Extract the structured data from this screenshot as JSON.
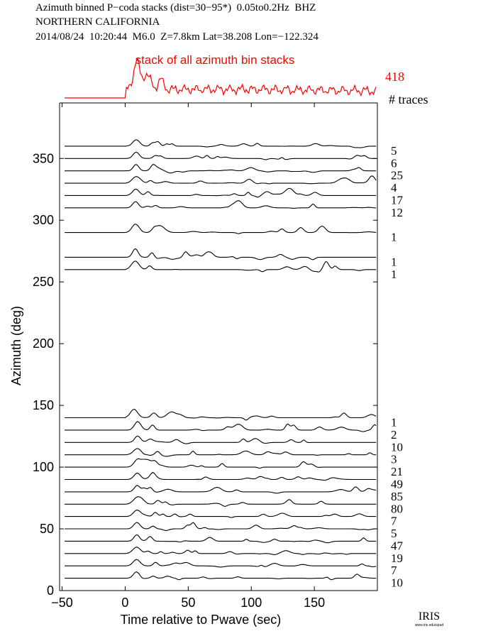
{
  "header": {
    "line1": "Azimuth binned P−coda stacks (dist=30−95*)  0.05to0.2Hz  BHZ",
    "line2": "NORTHERN CALIFORNIA",
    "line3": "2014/08/24  10:20:44  M6.0  Z=7.8km Lat=38.208 Lon=−122.324"
  },
  "logo": {
    "text": "IRIS",
    "subtext": "www.iris.edu/spud"
  },
  "colors": {
    "stack": "#ff0000",
    "trace": "#000000"
  },
  "chart_data": {
    "type": "line",
    "title": "",
    "xlabel": "Time relative to Pwave (sec)",
    "ylabel": "Azimuth (deg)",
    "xlim": [
      -52,
      200
    ],
    "ylim": [
      0,
      395
    ],
    "xticks": [
      -50,
      0,
      50,
      100,
      150
    ],
    "yticks": [
      0,
      50,
      100,
      150,
      200,
      250,
      300,
      350
    ],
    "xtick_labels": [
      "−50",
      "0",
      "50",
      "100",
      "150"
    ],
    "ytick_labels": [
      "0",
      "50",
      "100",
      "150",
      "200",
      "250",
      "300",
      "350"
    ],
    "grid": false,
    "summary_stack": {
      "label": "stack of all azimuth bin stacks",
      "count": "418",
      "count_header": "# traces"
    },
    "traces": [
      {
        "azimuth": 360,
        "count": "5"
      },
      {
        "azimuth": 350,
        "count": "6"
      },
      {
        "azimuth": 340,
        "count": "25"
      },
      {
        "azimuth": 330,
        "count": "4"
      },
      {
        "azimuth": 320,
        "count": "17"
      },
      {
        "azimuth": 310,
        "count": "12"
      },
      {
        "azimuth": 290,
        "count": "1"
      },
      {
        "azimuth": 270,
        "count": "1"
      },
      {
        "azimuth": 260,
        "count": "1"
      },
      {
        "azimuth": 140,
        "count": "1"
      },
      {
        "azimuth": 130,
        "count": "2"
      },
      {
        "azimuth": 120,
        "count": "10"
      },
      {
        "azimuth": 110,
        "count": "3"
      },
      {
        "azimuth": 100,
        "count": "21"
      },
      {
        "azimuth": 90,
        "count": "49"
      },
      {
        "azimuth": 80,
        "count": "85"
      },
      {
        "azimuth": 70,
        "count": "80"
      },
      {
        "azimuth": 60,
        "count": "7"
      },
      {
        "azimuth": 50,
        "count": "5"
      },
      {
        "azimuth": 40,
        "count": "47"
      },
      {
        "azimuth": 30,
        "count": "19"
      },
      {
        "azimuth": 20,
        "count": "7"
      },
      {
        "azimuth": 10,
        "count": "10"
      }
    ]
  }
}
